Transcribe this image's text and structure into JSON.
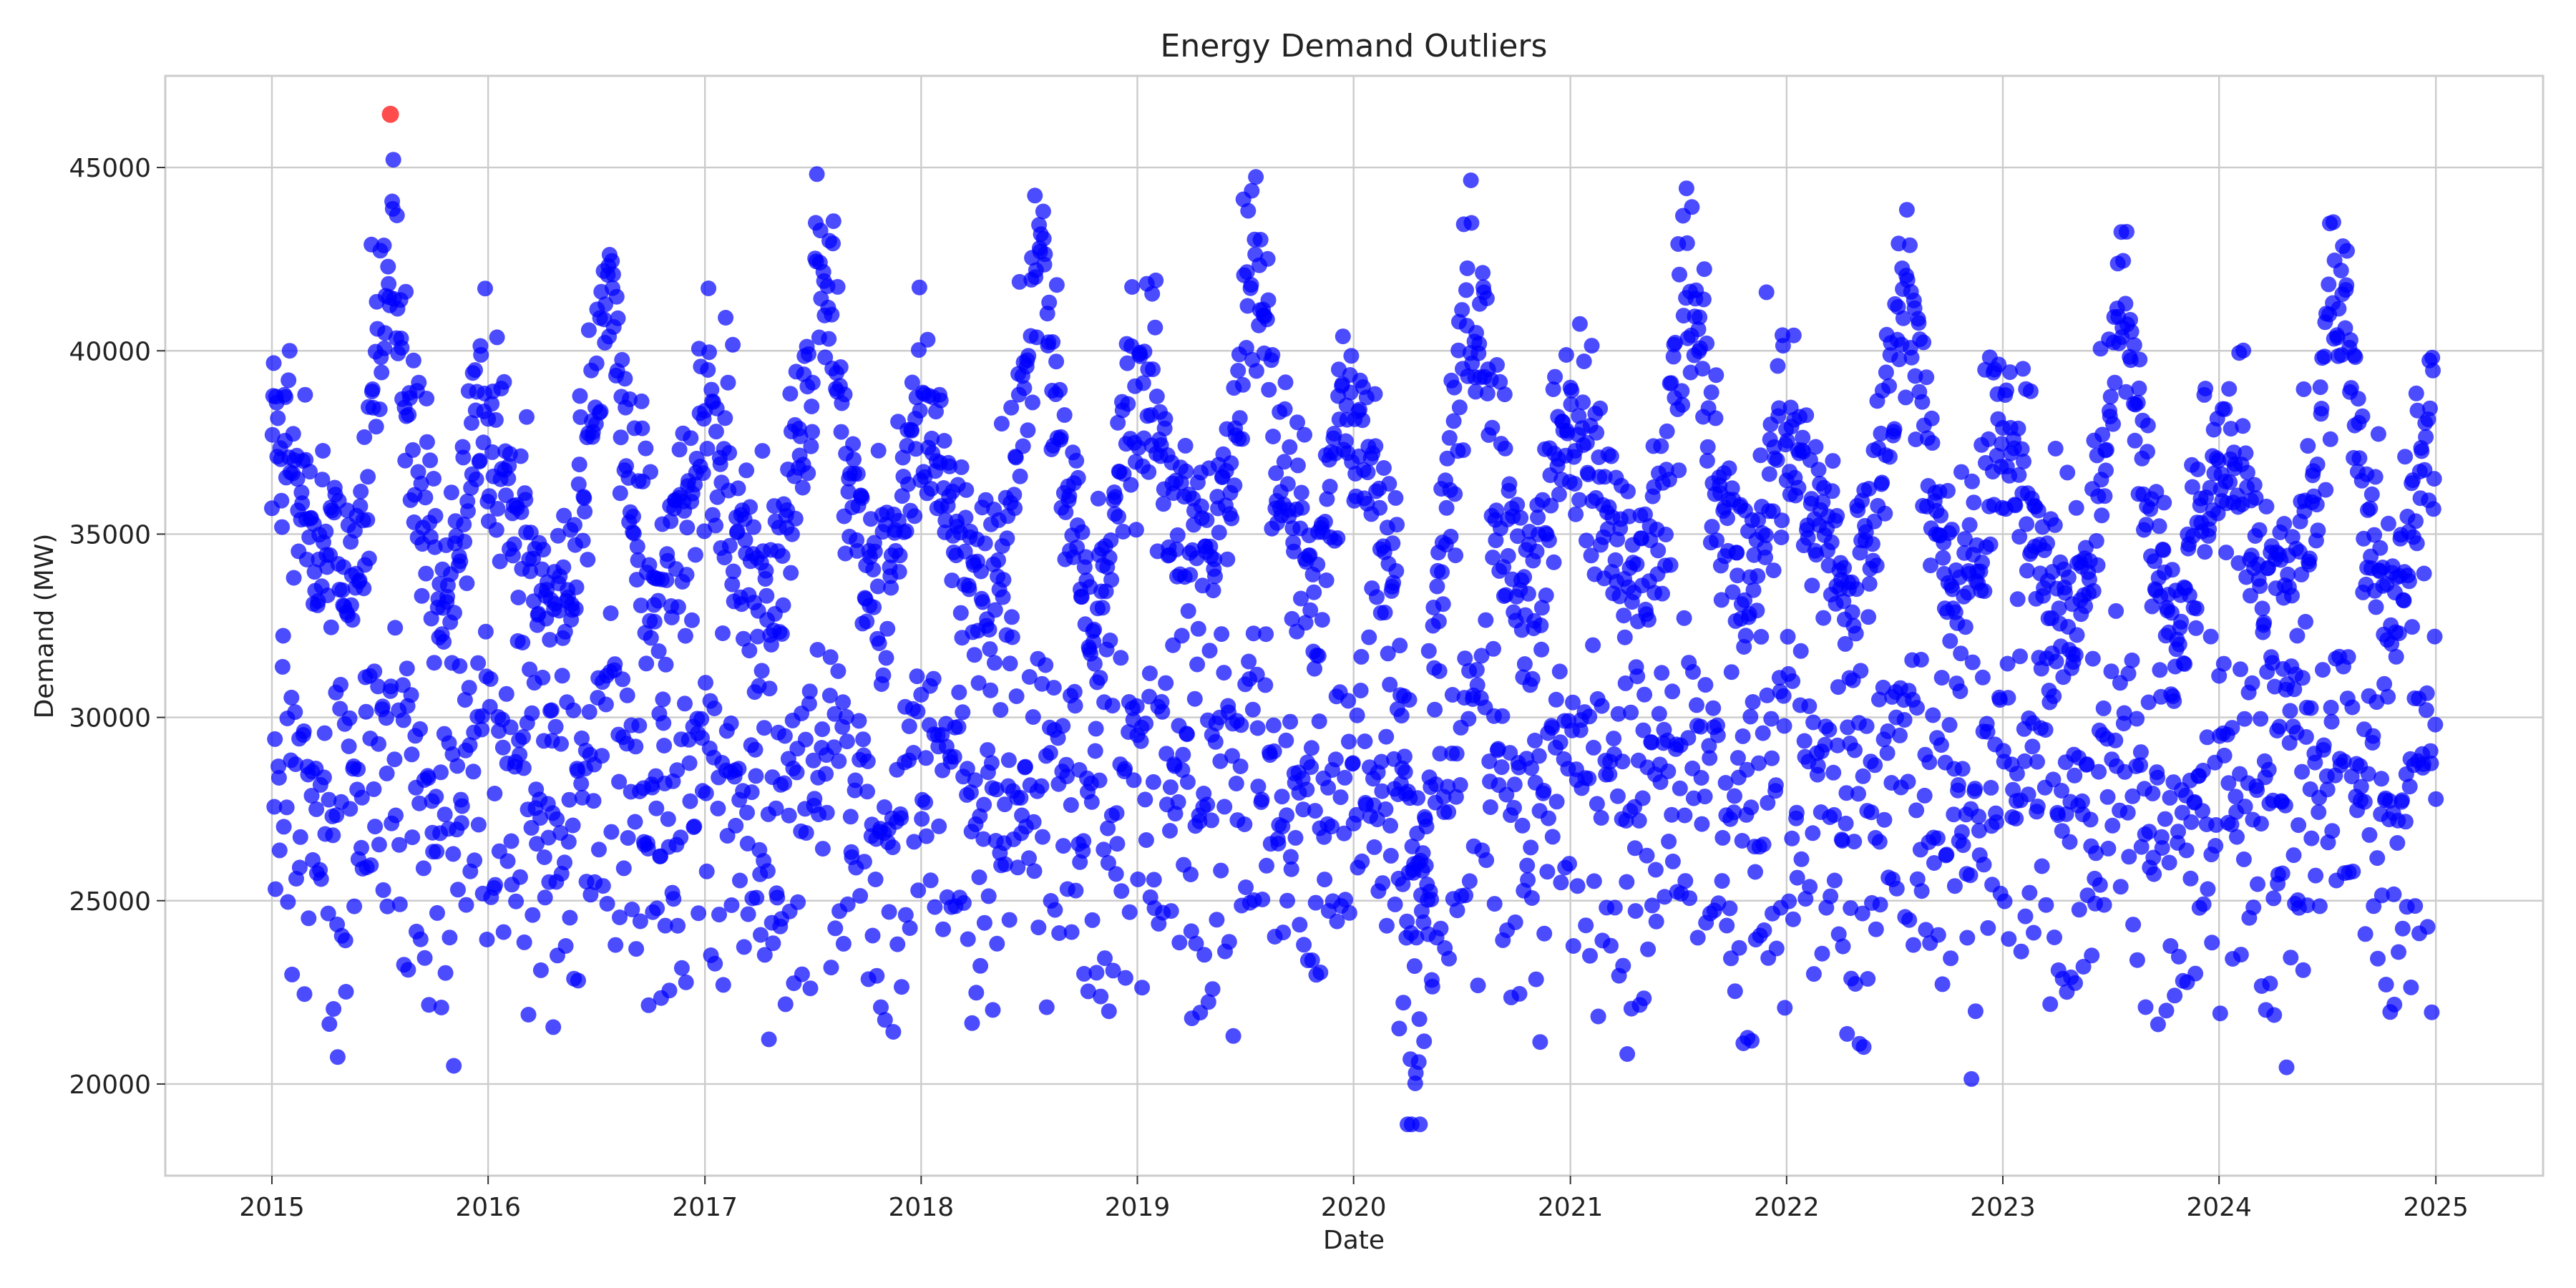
{
  "chart_data": {
    "type": "scatter",
    "title": "Energy Demand Outliers",
    "xlabel": "Date",
    "ylabel": "Demand (MW)",
    "x_ticks": [
      "2015",
      "2016",
      "2017",
      "2018",
      "2019",
      "2020",
      "2021",
      "2022",
      "2023",
      "2024",
      "2025"
    ],
    "y_ticks": [
      "20000",
      "25000",
      "30000",
      "35000",
      "40000",
      "45000"
    ],
    "xlim": [
      "2014-07-05",
      "2025-07-01"
    ],
    "ylim": [
      17500,
      47500
    ],
    "grid": true,
    "legend": "none",
    "colors": {
      "normal": "#0000ff",
      "outlier": "#ff0000"
    },
    "series": [
      {
        "role": "normal",
        "x": [
          "2015-01-01",
          "2025-01-01"
        ],
        "approx_daily_range": [
          19000,
          45300
        ],
        "point_count": 3653,
        "pattern": "Three interleaved daily bands (high ~30000-45000 with summer and winter peaks, middle ~25000-33000, low ~20000-28000); spring/autumn dips; pronounced low in April 2020 (~19000)"
      },
      {
        "role": "outlier",
        "points": [
          {
            "x": "2015-07-20",
            "y": 46450
          }
        ]
      }
    ]
  }
}
